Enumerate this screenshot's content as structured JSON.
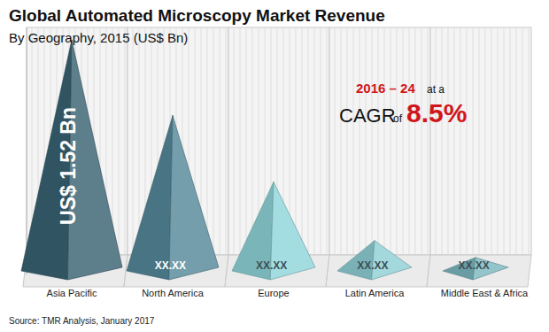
{
  "chart_data": {
    "type": "pyramid",
    "title": "Global Automated Microscopy Market Revenue",
    "subtitle": "By Geography, 2015 (US$ Bn)",
    "annotation": [
      "2016 – 24",
      "at a",
      "CAGR",
      "of",
      "8.5%"
    ],
    "source": "Source: TMR Analysis, January 2017",
    "categories": [
      "Asia Pacific",
      "North America",
      "Europe",
      "Latin America",
      "Middle East & Africa"
    ],
    "values": [
      1.52,
      1.03,
      0.6,
      0.22,
      0.11
    ],
    "value_labels": [
      "US$ 1.52 Bn",
      "XX.XX",
      "XX.XX",
      "XX.XX",
      "XX.XX"
    ],
    "data_labels": true,
    "colors": [
      "#3a6373",
      "#55899a",
      "#8fd6da",
      "#8fd0d6",
      "#7bb8c0"
    ],
    "ylim": [
      0,
      1.6
    ],
    "tick_labels": false,
    "grid": true
  }
}
